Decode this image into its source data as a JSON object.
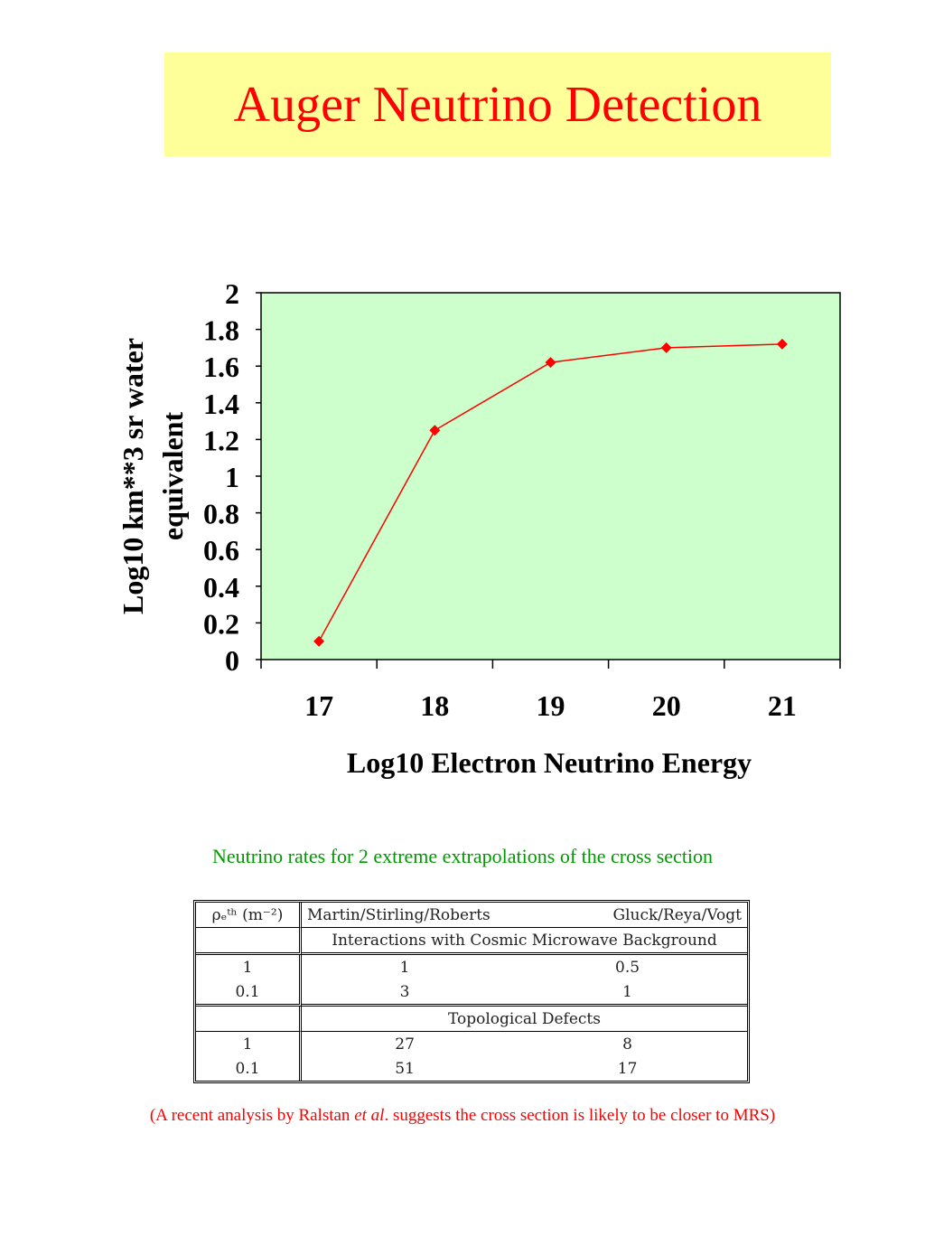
{
  "title": "Auger Neutrino Detection",
  "chart_data": {
    "type": "line",
    "x": [
      17,
      18,
      19,
      20,
      21
    ],
    "series": [
      {
        "values": [
          0.1,
          1.25,
          1.62,
          1.7,
          1.72
        ]
      }
    ],
    "xlabel": "Log10 Electron Neutrino Energy",
    "ylabel_lines": [
      "Log10 km**3 sr water",
      "equivalent"
    ],
    "ylim": [
      0,
      2
    ],
    "yticks": [
      "0",
      "0.2",
      "0.4",
      "0.6",
      "0.8",
      "1",
      "1.2",
      "1.4",
      "1.6",
      "1.8",
      "2"
    ],
    "xticks": [
      "17",
      "18",
      "19",
      "20",
      "21"
    ],
    "grid": false,
    "plot_background": "#ccffcc",
    "series_color": "#ff0000",
    "marker": "diamond"
  },
  "caption": "Neutrino rates for 2 extreme extrapolations of the cross section",
  "table": {
    "header_col0": "ρₑᵗʰ (m⁻²)",
    "header_mrs": "Martin/Stirling/Roberts",
    "header_grv": "Gluck/Reya/Vogt",
    "section1": "Interactions with Cosmic Microwave Background",
    "section1_rows": [
      [
        "1",
        "1",
        "0.5"
      ],
      [
        "0.1",
        "3",
        "1"
      ]
    ],
    "section2": "Topological Defects",
    "section2_rows": [
      [
        "1",
        "27",
        "8"
      ],
      [
        "0.1",
        "51",
        "17"
      ]
    ]
  },
  "note": {
    "before": "(A recent analysis by Ralstan ",
    "italic": "et al",
    "after": ". suggests the cross section is likely to be closer to MRS)"
  }
}
